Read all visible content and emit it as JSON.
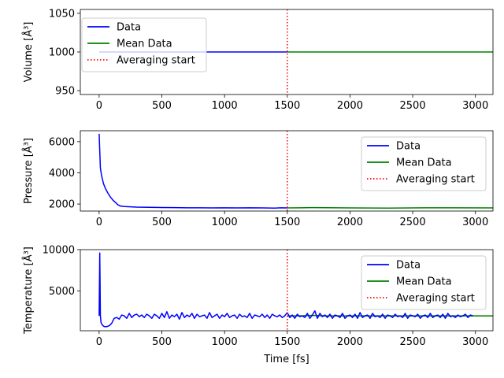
{
  "xlabel": "Time [$fs$]",
  "chart_data": [
    {
      "type": "line",
      "ylabel": "Volume [$Å^3$]",
      "xlim": [
        -150,
        3140
      ],
      "ylim": [
        945,
        1055
      ],
      "xticks": [
        0,
        500,
        1000,
        1500,
        2000,
        2500,
        3000
      ],
      "yticks": [
        950,
        1000,
        1050
      ],
      "legend_position": "upper left",
      "averaging_start": 1500,
      "series": [
        {
          "name": "Data",
          "color": "#0000ff",
          "x": [
            0,
            1500
          ],
          "y": [
            1000,
            1000
          ]
        },
        {
          "name": "Mean Data",
          "color": "#008000",
          "x": [
            1500,
            3140
          ],
          "y": [
            1000,
            1000
          ]
        },
        {
          "name": "Averaging start",
          "color": "#ff0000",
          "style": "dotted"
        }
      ]
    },
    {
      "type": "line",
      "ylabel": "Pressure [$Å^3$]",
      "xlim": [
        -150,
        3140
      ],
      "ylim": [
        1550,
        6700
      ],
      "xticks": [
        0,
        500,
        1000,
        1500,
        2000,
        2500,
        3000
      ],
      "yticks": [
        2000,
        4000,
        6000
      ],
      "legend_position": "upper right",
      "averaging_start": 1500,
      "series": [
        {
          "name": "Data",
          "color": "#0000ff",
          "x": [
            0,
            10,
            20,
            35,
            50,
            70,
            90,
            110,
            130,
            150,
            170,
            200,
            250,
            300,
            400,
            500,
            600,
            700,
            800,
            900,
            1000,
            1100,
            1200,
            1300,
            1400,
            1450,
            1500
          ],
          "y": [
            6500,
            4300,
            3800,
            3300,
            3000,
            2700,
            2450,
            2250,
            2100,
            1950,
            1870,
            1840,
            1820,
            1800,
            1790,
            1780,
            1770,
            1760,
            1760,
            1750,
            1760,
            1750,
            1760,
            1750,
            1740,
            1760,
            1750
          ]
        },
        {
          "name": "Mean Data",
          "color": "#008000",
          "x": [
            1500,
            1700,
            2000,
            2300,
            2600,
            2800,
            3140
          ],
          "y": [
            1750,
            1770,
            1750,
            1740,
            1760,
            1760,
            1750
          ]
        },
        {
          "name": "Averaging start",
          "color": "#ff0000",
          "style": "dotted"
        }
      ]
    },
    {
      "type": "line",
      "ylabel": "Temperature [$Å^3$]",
      "xlim": [
        -150,
        3140
      ],
      "ylim": [
        200,
        10000
      ],
      "xticks": [
        0,
        500,
        1000,
        1500,
        2000,
        2500,
        3000
      ],
      "yticks": [
        5000,
        10000
      ],
      "legend_position": "upper right",
      "averaging_start": 1500,
      "series": [
        {
          "name": "Data",
          "color": "#0000ff",
          "x": [
            0,
            5,
            10,
            15,
            25,
            40,
            60,
            80,
            100,
            120,
            140,
            160,
            180,
            200,
            220,
            240,
            260,
            280,
            300,
            320,
            340,
            360,
            380,
            400,
            420,
            440,
            460,
            480,
            500,
            520,
            540,
            560,
            580,
            600,
            620,
            640,
            660,
            680,
            700,
            720,
            740,
            760,
            780,
            800,
            820,
            840,
            860,
            880,
            900,
            920,
            940,
            960,
            980,
            1000,
            1020,
            1040,
            1060,
            1080,
            1100,
            1120,
            1140,
            1160,
            1180,
            1200,
            1220,
            1240,
            1260,
            1280,
            1300,
            1320,
            1340,
            1360,
            1380,
            1400,
            1420,
            1440,
            1460,
            1480,
            1500
          ],
          "y": [
            2000,
            9600,
            2000,
            1200,
            900,
            700,
            700,
            800,
            1100,
            1700,
            1800,
            1600,
            2100,
            2000,
            1700,
            2300,
            1800,
            2100,
            2200,
            1900,
            2100,
            1800,
            2200,
            2000,
            1700,
            2200,
            2000,
            1700,
            2300,
            1800,
            2500,
            1700,
            2100,
            1900,
            2200,
            1600,
            2400,
            1800,
            2100,
            1900,
            2300,
            1700,
            2200,
            1900,
            2000,
            2100,
            1700,
            2400,
            1800,
            2000,
            2200,
            1700,
            2100,
            1900,
            2300,
            1800,
            2000,
            2100,
            1700,
            2200,
            1900,
            2000,
            1800,
            2300,
            1700,
            2100,
            2000,
            1900,
            2200,
            1800,
            2100,
            1700,
            2200,
            2000,
            1900,
            2100,
            1800,
            2000,
            2400
          ]
        },
        {
          "name": "Mean Data",
          "color": "#008000",
          "x": [
            1500,
            1600,
            1700,
            1800,
            1900,
            2000,
            2100,
            2200,
            2300,
            2400,
            2500,
            2600,
            2700,
            2800,
            2900,
            3000,
            3140
          ],
          "y": [
            2000,
            2000,
            2050,
            2000,
            2000,
            2000,
            2000,
            2000,
            2000,
            2000,
            2000,
            2000,
            2000,
            2000,
            2000,
            2000,
            2000
          ]
        },
        {
          "name": "Averaging start",
          "color": "#ff0000",
          "style": "dotted"
        }
      ],
      "overlay": {
        "name": "Data",
        "color": "#0000ff",
        "x": [
          1500,
          1520,
          1540,
          1560,
          1580,
          1600,
          1620,
          1640,
          1660,
          1680,
          1700,
          1720,
          1740,
          1760,
          1780,
          1800,
          1820,
          1840,
          1860,
          1880,
          1900,
          1920,
          1940,
          1960,
          1980,
          2000,
          2020,
          2040,
          2060,
          2080,
          2100,
          2120,
          2140,
          2160,
          2180,
          2200,
          2220,
          2240,
          2260,
          2280,
          2300,
          2320,
          2340,
          2360,
          2380,
          2400,
          2420,
          2440,
          2460,
          2480,
          2500,
          2520,
          2540,
          2560,
          2580,
          2600,
          2620,
          2640,
          2660,
          2680,
          2700,
          2720,
          2740,
          2760,
          2780,
          2800,
          2820,
          2840,
          2860,
          2880,
          2900,
          2920,
          2940,
          2960,
          2980
        ],
        "y": [
          2400,
          1800,
          2100,
          1700,
          2200,
          1900,
          2000,
          1800,
          2300,
          1700,
          2100,
          2600,
          1700,
          2300,
          1900,
          2100,
          1800,
          2200,
          1700,
          2100,
          2000,
          1800,
          2300,
          1700,
          2000,
          2100,
          1800,
          2200,
          1700,
          2400,
          1800,
          2000,
          2100,
          1700,
          2300,
          1900,
          2000,
          1800,
          2200,
          1700,
          2100,
          2000,
          1800,
          2200,
          1900,
          2000,
          1800,
          2300,
          1700,
          2100,
          2000,
          1900,
          2200,
          1700,
          2000,
          2100,
          1800,
          2300,
          1800,
          2000,
          2100,
          1800,
          2200,
          1700,
          2300,
          1900,
          2000,
          1800,
          2100,
          1900,
          2000,
          2200,
          1800,
          2100,
          2000
        ]
      }
    }
  ]
}
